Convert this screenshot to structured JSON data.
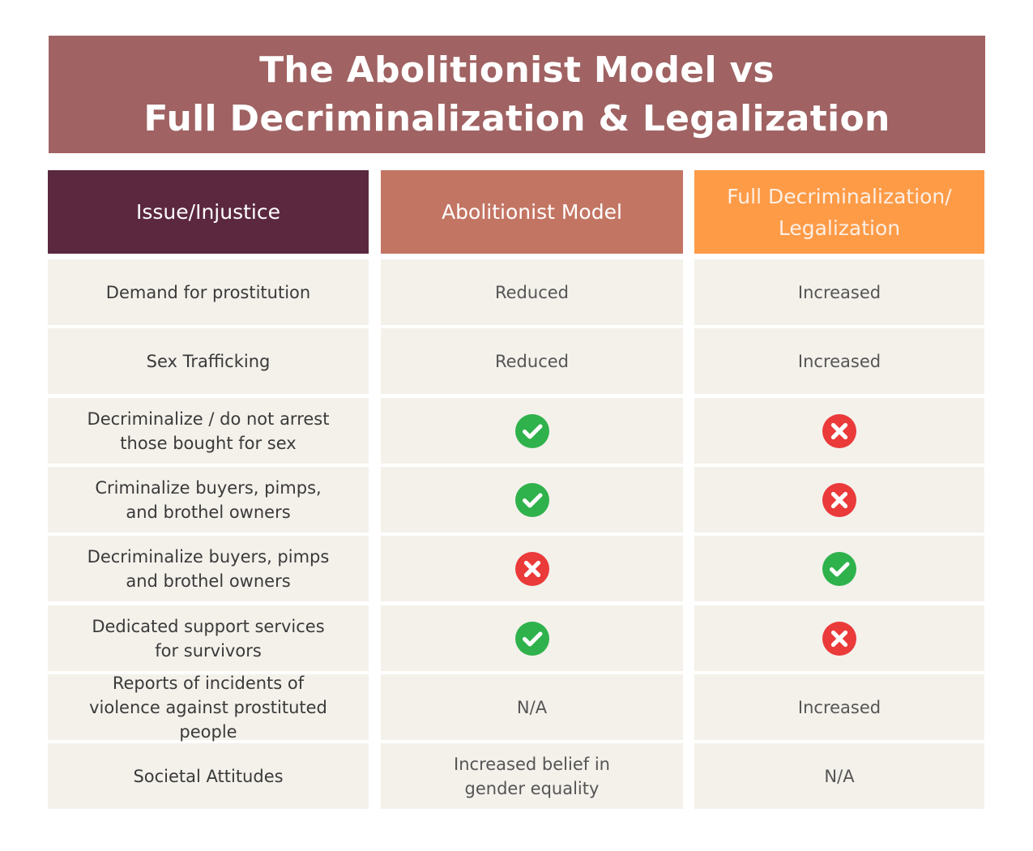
{
  "title": {
    "line1": "The Abolitionist Model vs",
    "line2": "Full Decriminalization & Legalization"
  },
  "colors": {
    "banner": "#A06262",
    "header_issue": "#5B2840",
    "header_abolitionist": "#C37563",
    "header_full": "#FE9B47",
    "header_full_text": "#FBEFE4",
    "row_bg": "#F4F1EB",
    "check": "#2FB24C",
    "cross": "#EA3A3A"
  },
  "headers": {
    "issue": "Issue/Injustice",
    "abolitionist": "Abolitionist Model",
    "full": "Full Decriminalization/ Legalization"
  },
  "rows": [
    {
      "issue": "Demand for prostitution",
      "abolitionist": {
        "kind": "text",
        "text": "Reduced"
      },
      "full": {
        "kind": "text",
        "text": "Increased"
      }
    },
    {
      "issue": "Sex Trafficking",
      "abolitionist": {
        "kind": "text",
        "text": "Reduced"
      },
      "full": {
        "kind": "text",
        "text": "Increased"
      }
    },
    {
      "issue": "Decriminalize / do not arrest those bought for sex",
      "abolitionist": {
        "kind": "icon",
        "icon": "check-icon"
      },
      "full": {
        "kind": "icon",
        "icon": "cross-icon"
      }
    },
    {
      "issue": "Criminalize buyers, pimps, and brothel owners",
      "abolitionist": {
        "kind": "icon",
        "icon": "check-icon"
      },
      "full": {
        "kind": "icon",
        "icon": "cross-icon"
      }
    },
    {
      "issue": "Decriminalize buyers, pimps and brothel owners",
      "abolitionist": {
        "kind": "icon",
        "icon": "cross-icon"
      },
      "full": {
        "kind": "icon",
        "icon": "check-icon"
      }
    },
    {
      "issue": "Dedicated support services for survivors",
      "abolitionist": {
        "kind": "icon",
        "icon": "check-icon"
      },
      "full": {
        "kind": "icon",
        "icon": "cross-icon"
      }
    },
    {
      "issue": "Reports of incidents of violence against prostituted people",
      "abolitionist": {
        "kind": "text",
        "text": "N/A"
      },
      "full": {
        "kind": "text",
        "text": "Increased"
      }
    },
    {
      "issue": "Societal Attitudes",
      "abolitionist": {
        "kind": "text",
        "text": "Increased belief in gender equality"
      },
      "full": {
        "kind": "text",
        "text": "N/A"
      }
    }
  ]
}
